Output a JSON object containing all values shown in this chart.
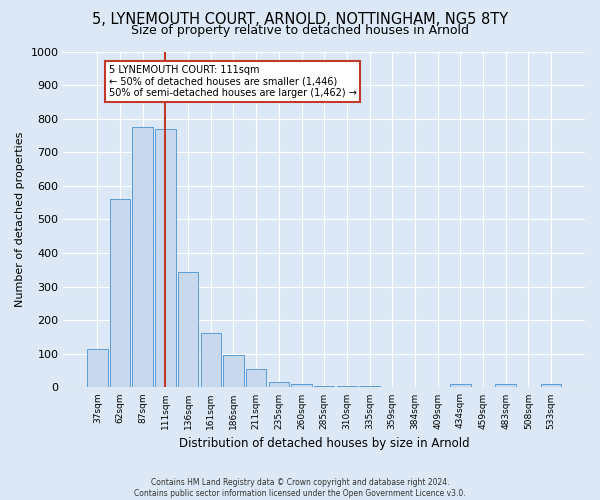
{
  "title": "5, LYNEMOUTH COURT, ARNOLD, NOTTINGHAM, NG5 8TY",
  "subtitle": "Size of property relative to detached houses in Arnold",
  "xlabel": "Distribution of detached houses by size in Arnold",
  "ylabel": "Number of detached properties",
  "bar_labels": [
    "37sqm",
    "62sqm",
    "87sqm",
    "111sqm",
    "136sqm",
    "161sqm",
    "186sqm",
    "211sqm",
    "235sqm",
    "260sqm",
    "285sqm",
    "310sqm",
    "335sqm",
    "359sqm",
    "384sqm",
    "409sqm",
    "434sqm",
    "459sqm",
    "483sqm",
    "508sqm",
    "533sqm"
  ],
  "bar_values": [
    113,
    560,
    775,
    770,
    345,
    163,
    98,
    55,
    15,
    10,
    5,
    3,
    3,
    0,
    0,
    0,
    10,
    0,
    10,
    0,
    10
  ],
  "bar_color": "#c9d9ed",
  "bar_edge_color": "#5b9bd5",
  "vline_x_index": 3,
  "vline_color": "#c0392b",
  "annotation_title": "5 LYNEMOUTH COURT: 111sqm",
  "annotation_line1": "← 50% of detached houses are smaller (1,446)",
  "annotation_line2": "50% of semi-detached houses are larger (1,462) →",
  "annotation_box_edge": "#c0392b",
  "ylim": [
    0,
    1000
  ],
  "yticks": [
    0,
    100,
    200,
    300,
    400,
    500,
    600,
    700,
    800,
    900,
    1000
  ],
  "footer1": "Contains HM Land Registry data © Crown copyright and database right 2024.",
  "footer2": "Contains public sector information licensed under the Open Government Licence v3.0.",
  "bg_color": "#dce8f5",
  "plot_bg_color": "#dce8f5",
  "grid_color": "#ffffff",
  "title_fontsize": 10.5,
  "subtitle_fontsize": 9
}
